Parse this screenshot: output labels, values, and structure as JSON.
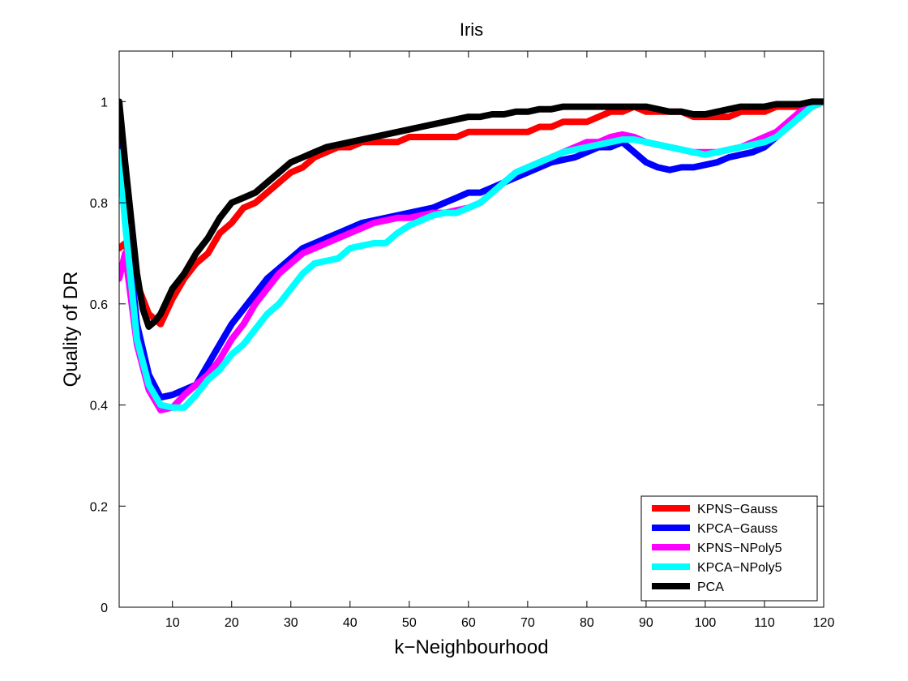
{
  "chart_data": {
    "type": "line",
    "title": "Iris",
    "xlabel": "k−Neighbourhood",
    "ylabel": "Quality of DR",
    "xlim": [
      1,
      120
    ],
    "ylim": [
      0,
      1.1
    ],
    "xticks": [
      10,
      20,
      30,
      40,
      50,
      60,
      70,
      80,
      90,
      100,
      110,
      120
    ],
    "yticks": [
      0,
      0.2,
      0.4,
      0.6,
      0.8,
      1
    ],
    "ytick_labels": [
      "0",
      "0.2",
      "0.4",
      "0.6",
      "0.8",
      "1"
    ],
    "grid": false,
    "legend_position": "bottom-right",
    "series": [
      {
        "name": "KPNS−Gauss",
        "color": "#ff0000",
        "points": [
          [
            1,
            0.71
          ],
          [
            2,
            0.72
          ],
          [
            4,
            0.64
          ],
          [
            6,
            0.58
          ],
          [
            8,
            0.56
          ],
          [
            10,
            0.61
          ],
          [
            12,
            0.65
          ],
          [
            14,
            0.68
          ],
          [
            16,
            0.7
          ],
          [
            18,
            0.74
          ],
          [
            20,
            0.76
          ],
          [
            22,
            0.79
          ],
          [
            24,
            0.8
          ],
          [
            26,
            0.82
          ],
          [
            28,
            0.84
          ],
          [
            30,
            0.86
          ],
          [
            32,
            0.87
          ],
          [
            34,
            0.89
          ],
          [
            36,
            0.9
          ],
          [
            38,
            0.91
          ],
          [
            40,
            0.91
          ],
          [
            42,
            0.92
          ],
          [
            44,
            0.92
          ],
          [
            46,
            0.92
          ],
          [
            48,
            0.92
          ],
          [
            50,
            0.93
          ],
          [
            52,
            0.93
          ],
          [
            54,
            0.93
          ],
          [
            56,
            0.93
          ],
          [
            58,
            0.93
          ],
          [
            60,
            0.94
          ],
          [
            62,
            0.94
          ],
          [
            64,
            0.94
          ],
          [
            66,
            0.94
          ],
          [
            68,
            0.94
          ],
          [
            70,
            0.94
          ],
          [
            72,
            0.95
          ],
          [
            74,
            0.95
          ],
          [
            76,
            0.96
          ],
          [
            78,
            0.96
          ],
          [
            80,
            0.96
          ],
          [
            82,
            0.97
          ],
          [
            84,
            0.98
          ],
          [
            86,
            0.98
          ],
          [
            88,
            0.99
          ],
          [
            90,
            0.98
          ],
          [
            92,
            0.98
          ],
          [
            94,
            0.98
          ],
          [
            96,
            0.98
          ],
          [
            98,
            0.97
          ],
          [
            100,
            0.97
          ],
          [
            102,
            0.97
          ],
          [
            104,
            0.97
          ],
          [
            106,
            0.98
          ],
          [
            108,
            0.98
          ],
          [
            110,
            0.98
          ],
          [
            112,
            0.99
          ],
          [
            114,
            0.99
          ],
          [
            116,
            0.99
          ],
          [
            118,
            0.99
          ],
          [
            120,
            1.0
          ]
        ]
      },
      {
        "name": "KPCA−Gauss",
        "color": "#0000ff",
        "points": [
          [
            1,
            0.92
          ],
          [
            2,
            0.78
          ],
          [
            4,
            0.56
          ],
          [
            6,
            0.46
          ],
          [
            8,
            0.415
          ],
          [
            10,
            0.42
          ],
          [
            12,
            0.43
          ],
          [
            14,
            0.44
          ],
          [
            16,
            0.48
          ],
          [
            18,
            0.52
          ],
          [
            20,
            0.56
          ],
          [
            22,
            0.59
          ],
          [
            24,
            0.62
          ],
          [
            26,
            0.65
          ],
          [
            28,
            0.67
          ],
          [
            30,
            0.69
          ],
          [
            32,
            0.71
          ],
          [
            34,
            0.72
          ],
          [
            36,
            0.73
          ],
          [
            38,
            0.74
          ],
          [
            40,
            0.75
          ],
          [
            42,
            0.76
          ],
          [
            44,
            0.765
          ],
          [
            46,
            0.77
          ],
          [
            48,
            0.775
          ],
          [
            50,
            0.78
          ],
          [
            52,
            0.785
          ],
          [
            54,
            0.79
          ],
          [
            56,
            0.8
          ],
          [
            58,
            0.81
          ],
          [
            60,
            0.82
          ],
          [
            62,
            0.82
          ],
          [
            64,
            0.83
          ],
          [
            66,
            0.84
          ],
          [
            68,
            0.85
          ],
          [
            70,
            0.86
          ],
          [
            72,
            0.87
          ],
          [
            74,
            0.88
          ],
          [
            76,
            0.885
          ],
          [
            78,
            0.89
          ],
          [
            80,
            0.9
          ],
          [
            82,
            0.91
          ],
          [
            84,
            0.91
          ],
          [
            86,
            0.92
          ],
          [
            88,
            0.9
          ],
          [
            90,
            0.88
          ],
          [
            92,
            0.87
          ],
          [
            94,
            0.865
          ],
          [
            96,
            0.87
          ],
          [
            98,
            0.87
          ],
          [
            100,
            0.875
          ],
          [
            102,
            0.88
          ],
          [
            104,
            0.89
          ],
          [
            106,
            0.895
          ],
          [
            108,
            0.9
          ],
          [
            110,
            0.91
          ],
          [
            112,
            0.93
          ],
          [
            114,
            0.95
          ],
          [
            116,
            0.97
          ],
          [
            118,
            0.99
          ],
          [
            120,
            1.0
          ]
        ]
      },
      {
        "name": "KPNS−NPoly5",
        "color": "#ff00ff",
        "points": [
          [
            1,
            0.65
          ],
          [
            2,
            0.7
          ],
          [
            4,
            0.52
          ],
          [
            6,
            0.43
          ],
          [
            8,
            0.39
          ],
          [
            10,
            0.395
          ],
          [
            12,
            0.42
          ],
          [
            14,
            0.44
          ],
          [
            16,
            0.46
          ],
          [
            18,
            0.49
          ],
          [
            20,
            0.53
          ],
          [
            22,
            0.56
          ],
          [
            24,
            0.6
          ],
          [
            26,
            0.63
          ],
          [
            28,
            0.66
          ],
          [
            30,
            0.68
          ],
          [
            32,
            0.7
          ],
          [
            34,
            0.71
          ],
          [
            36,
            0.72
          ],
          [
            38,
            0.73
          ],
          [
            40,
            0.74
          ],
          [
            42,
            0.75
          ],
          [
            44,
            0.76
          ],
          [
            46,
            0.765
          ],
          [
            48,
            0.77
          ],
          [
            50,
            0.77
          ],
          [
            52,
            0.775
          ],
          [
            54,
            0.78
          ],
          [
            56,
            0.78
          ],
          [
            58,
            0.785
          ],
          [
            60,
            0.79
          ],
          [
            62,
            0.8
          ],
          [
            64,
            0.82
          ],
          [
            66,
            0.84
          ],
          [
            68,
            0.86
          ],
          [
            70,
            0.87
          ],
          [
            72,
            0.88
          ],
          [
            74,
            0.89
          ],
          [
            76,
            0.9
          ],
          [
            78,
            0.91
          ],
          [
            80,
            0.92
          ],
          [
            82,
            0.92
          ],
          [
            84,
            0.93
          ],
          [
            86,
            0.935
          ],
          [
            88,
            0.93
          ],
          [
            90,
            0.92
          ],
          [
            92,
            0.915
          ],
          [
            94,
            0.91
          ],
          [
            96,
            0.905
          ],
          [
            98,
            0.9
          ],
          [
            100,
            0.9
          ],
          [
            102,
            0.9
          ],
          [
            104,
            0.905
          ],
          [
            106,
            0.91
          ],
          [
            108,
            0.92
          ],
          [
            110,
            0.93
          ],
          [
            112,
            0.94
          ],
          [
            114,
            0.96
          ],
          [
            116,
            0.98
          ],
          [
            118,
            0.99
          ],
          [
            120,
            1.0
          ]
        ]
      },
      {
        "name": "KPCA−NPoly5",
        "color": "#00ffff",
        "points": [
          [
            1,
            0.9
          ],
          [
            2,
            0.76
          ],
          [
            4,
            0.53
          ],
          [
            6,
            0.44
          ],
          [
            8,
            0.4
          ],
          [
            10,
            0.395
          ],
          [
            12,
            0.395
          ],
          [
            14,
            0.42
          ],
          [
            16,
            0.45
          ],
          [
            18,
            0.47
          ],
          [
            20,
            0.5
          ],
          [
            22,
            0.52
          ],
          [
            24,
            0.55
          ],
          [
            26,
            0.58
          ],
          [
            28,
            0.6
          ],
          [
            30,
            0.63
          ],
          [
            32,
            0.66
          ],
          [
            34,
            0.68
          ],
          [
            36,
            0.685
          ],
          [
            38,
            0.69
          ],
          [
            40,
            0.71
          ],
          [
            42,
            0.715
          ],
          [
            44,
            0.72
          ],
          [
            46,
            0.72
          ],
          [
            48,
            0.74
          ],
          [
            50,
            0.755
          ],
          [
            52,
            0.765
          ],
          [
            54,
            0.775
          ],
          [
            56,
            0.78
          ],
          [
            58,
            0.78
          ],
          [
            60,
            0.79
          ],
          [
            62,
            0.8
          ],
          [
            64,
            0.82
          ],
          [
            66,
            0.84
          ],
          [
            68,
            0.86
          ],
          [
            70,
            0.87
          ],
          [
            72,
            0.88
          ],
          [
            74,
            0.89
          ],
          [
            76,
            0.9
          ],
          [
            78,
            0.905
          ],
          [
            80,
            0.91
          ],
          [
            82,
            0.915
          ],
          [
            84,
            0.92
          ],
          [
            86,
            0.925
          ],
          [
            88,
            0.925
          ],
          [
            90,
            0.92
          ],
          [
            92,
            0.915
          ],
          [
            94,
            0.91
          ],
          [
            96,
            0.905
          ],
          [
            98,
            0.9
          ],
          [
            100,
            0.895
          ],
          [
            102,
            0.9
          ],
          [
            104,
            0.905
          ],
          [
            106,
            0.91
          ],
          [
            108,
            0.915
          ],
          [
            110,
            0.92
          ],
          [
            112,
            0.93
          ],
          [
            114,
            0.95
          ],
          [
            116,
            0.97
          ],
          [
            118,
            0.99
          ],
          [
            120,
            1.0
          ]
        ]
      },
      {
        "name": "PCA",
        "color": "#000000",
        "points": [
          [
            1,
            1.0
          ],
          [
            2,
            0.88
          ],
          [
            3,
            0.77
          ],
          [
            4,
            0.66
          ],
          [
            5,
            0.59
          ],
          [
            6,
            0.555
          ],
          [
            7,
            0.565
          ],
          [
            8,
            0.58
          ],
          [
            10,
            0.63
          ],
          [
            12,
            0.66
          ],
          [
            14,
            0.7
          ],
          [
            16,
            0.73
          ],
          [
            18,
            0.77
          ],
          [
            20,
            0.8
          ],
          [
            22,
            0.81
          ],
          [
            24,
            0.82
          ],
          [
            26,
            0.84
          ],
          [
            28,
            0.86
          ],
          [
            30,
            0.88
          ],
          [
            32,
            0.89
          ],
          [
            34,
            0.9
          ],
          [
            36,
            0.91
          ],
          [
            38,
            0.915
          ],
          [
            40,
            0.92
          ],
          [
            42,
            0.925
          ],
          [
            44,
            0.93
          ],
          [
            46,
            0.935
          ],
          [
            48,
            0.94
          ],
          [
            50,
            0.945
          ],
          [
            52,
            0.95
          ],
          [
            54,
            0.955
          ],
          [
            56,
            0.96
          ],
          [
            58,
            0.965
          ],
          [
            60,
            0.97
          ],
          [
            62,
            0.97
          ],
          [
            64,
            0.975
          ],
          [
            66,
            0.975
          ],
          [
            68,
            0.98
          ],
          [
            70,
            0.98
          ],
          [
            72,
            0.985
          ],
          [
            74,
            0.985
          ],
          [
            76,
            0.99
          ],
          [
            78,
            0.99
          ],
          [
            80,
            0.99
          ],
          [
            82,
            0.99
          ],
          [
            84,
            0.99
          ],
          [
            86,
            0.99
          ],
          [
            88,
            0.99
          ],
          [
            90,
            0.99
          ],
          [
            92,
            0.985
          ],
          [
            94,
            0.98
          ],
          [
            96,
            0.98
          ],
          [
            98,
            0.975
          ],
          [
            100,
            0.975
          ],
          [
            102,
            0.98
          ],
          [
            104,
            0.985
          ],
          [
            106,
            0.99
          ],
          [
            108,
            0.99
          ],
          [
            110,
            0.99
          ],
          [
            112,
            0.995
          ],
          [
            114,
            0.995
          ],
          [
            116,
            0.995
          ],
          [
            118,
            1.0
          ],
          [
            120,
            1.0
          ]
        ]
      }
    ]
  }
}
